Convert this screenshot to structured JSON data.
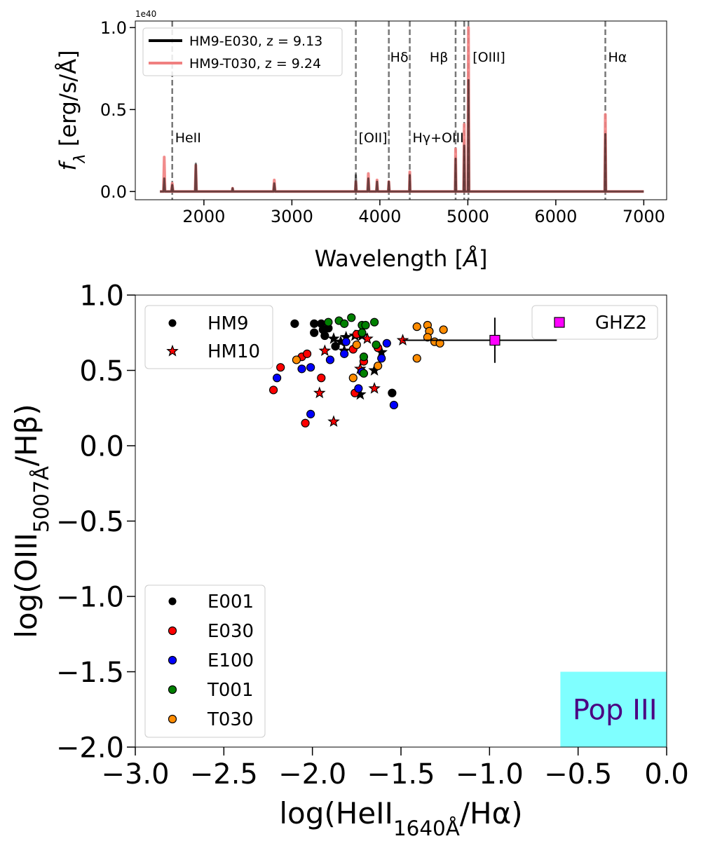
{
  "chart_data": [
    {
      "type": "line",
      "xlabel": {
        "main": "Wavelength [",
        "unit": "Å",
        "tail": "]"
      },
      "ylabel": {
        "main": "f",
        "sub": "λ",
        "tail": " [erg/s/Å]"
      },
      "offset_text": "1e40",
      "xlim": [
        1220,
        7260
      ],
      "xticks": [
        2000,
        3000,
        4000,
        5000,
        6000,
        7000
      ],
      "ylim": [
        -0.05,
        1.04
      ],
      "yticks": [
        {
          "value": 0,
          "label": "0.0"
        },
        0.5,
        {
          "value": 1,
          "label": "1.0"
        }
      ],
      "x": [
        1500,
        1540,
        1549,
        1558,
        1600,
        1630,
        1640,
        1650,
        1700,
        1880,
        1900,
        1908,
        1916,
        2000,
        2320,
        2326,
        2332,
        2400,
        2790,
        2800,
        2810,
        3000,
        3720,
        3727,
        3734,
        3860,
        3869,
        3878,
        3960,
        3968,
        3976,
        4095,
        4102,
        4109,
        4335,
        4340,
        4345,
        4855,
        4861,
        4867,
        4952,
        4959,
        4966,
        5000,
        5007,
        5014,
        5100,
        6556,
        6563,
        6570,
        7000
      ],
      "series": [
        {
          "name": "HM9-E030, z = 9.13",
          "color": "#000000",
          "values": [
            0,
            0,
            0.08,
            0,
            0,
            0,
            0.04,
            0,
            0,
            0,
            0,
            0.17,
            0,
            0,
            0,
            0.02,
            0,
            0,
            0,
            0.05,
            0,
            0,
            0,
            0.1,
            0,
            0,
            0.08,
            0,
            0,
            0.06,
            0,
            0,
            0.06,
            0,
            0,
            0.1,
            0,
            0,
            0.2,
            0,
            0,
            0.28,
            0,
            0,
            0.68,
            0,
            0,
            0,
            0.35,
            0,
            0
          ]
        },
        {
          "name": "HM9-T030, z = 9.24",
          "color": "#f08080",
          "values": [
            0,
            0,
            0.21,
            0,
            0,
            0,
            0.05,
            0,
            0,
            0,
            0,
            0.16,
            0,
            0,
            0,
            0.02,
            0,
            0,
            0,
            0.07,
            0,
            0,
            0,
            0.06,
            0,
            0,
            0.11,
            0,
            0,
            0.07,
            0,
            0,
            0.06,
            0,
            0,
            0.12,
            0,
            0,
            0.26,
            0,
            0,
            0.41,
            0,
            0,
            1.0,
            0,
            0,
            0,
            0.47,
            0,
            0
          ]
        }
      ],
      "lines": [
        {
          "x": 1640,
          "label": "HeII"
        },
        {
          "x": 3727,
          "label": "[OII]"
        },
        {
          "x": 4102,
          "label": "Hδ"
        },
        {
          "x": 4340,
          "label": "Hγ+OIII"
        },
        {
          "x": 4861,
          "label": "Hβ"
        },
        {
          "x": 4959,
          "label": null
        },
        {
          "x": 5007,
          "label": "[OIII]"
        },
        {
          "x": 6563,
          "label": "Hα"
        }
      ],
      "legend": "upper left"
    },
    {
      "type": "scatter",
      "xlabel": {
        "main": "log(HeII",
        "sub": "1640Å",
        "tail": "/Hα)"
      },
      "ylabel": {
        "main": "log(OIII",
        "sub": "5007Å",
        "tail": "/Hβ)"
      },
      "xlim": [
        -3,
        0
      ],
      "xticks": [
        {
          "value": -3,
          "label": "−3.0"
        },
        {
          "value": -2.5,
          "label": "−2.5"
        },
        {
          "value": -2,
          "label": "−2.0"
        },
        {
          "value": -1.5,
          "label": "−1.5"
        },
        {
          "value": -1,
          "label": "−1.0"
        },
        {
          "value": -0.5,
          "label": "−0.5"
        },
        {
          "value": 0,
          "label": "0.0"
        }
      ],
      "ylim": [
        -2,
        1
      ],
      "yticks": [
        {
          "value": 1,
          "label": "1.0"
        },
        0.5,
        {
          "value": 0,
          "label": "0.0"
        },
        {
          "value": -0.5,
          "label": "−0.5"
        },
        {
          "value": -1,
          "label": "−1.0"
        },
        {
          "value": -1.5,
          "label": "−1.5"
        },
        {
          "value": -2,
          "label": "−2.0"
        }
      ],
      "markers": [
        {
          "name": "HM9",
          "shape": "circle",
          "color": "#000000"
        },
        {
          "name": "HM10",
          "shape": "star",
          "color": "#ff0000"
        }
      ],
      "series": [
        {
          "name": "E001",
          "color": "#000000",
          "x": [
            -2.1,
            -1.99,
            -1.95,
            -1.99,
            -1.94,
            -1.93,
            -1.91,
            -1.87,
            -1.55,
            -1.88,
            -1.84,
            -1.81,
            -1.76,
            -1.72,
            -1.82,
            -1.65,
            -1.73,
            -1.61
          ],
          "y": [
            0.81,
            0.81,
            0.81,
            0.75,
            0.77,
            0.73,
            0.78,
            0.66,
            0.35,
            0.71,
            0.69,
            0.72,
            0.73,
            0.73,
            0.63,
            0.5,
            0.34,
            0.62
          ],
          "shape": [
            "circle",
            "circle",
            "circle",
            "circle",
            "circle",
            "circle",
            "circle",
            "circle",
            "circle",
            "star",
            "star",
            "star",
            "star",
            "star",
            "star",
            "star",
            "star",
            "star"
          ]
        },
        {
          "name": "E030",
          "color": "#ff0000",
          "x": [
            -2.22,
            -2.18,
            -2.06,
            -2.03,
            -2.04,
            -1.95,
            -1.77,
            -1.76,
            -1.71,
            -1.63,
            -1.75,
            -1.96,
            -1.93,
            -1.88,
            -1.69,
            -1.65,
            -1.49,
            -1.73
          ],
          "y": [
            0.37,
            0.52,
            0.59,
            0.61,
            0.15,
            0.45,
            0.64,
            0.35,
            0.56,
            0.65,
            0.74,
            0.35,
            0.63,
            0.16,
            0.71,
            0.38,
            0.7,
            0.51
          ],
          "shape": [
            "circle",
            "circle",
            "circle",
            "circle",
            "circle",
            "circle",
            "circle",
            "circle",
            "circle",
            "circle",
            "circle",
            "star",
            "star",
            "star",
            "star",
            "star",
            "star",
            "star"
          ]
        },
        {
          "name": "E100",
          "color": "#0000ff",
          "x": [
            -2.2,
            -2.06,
            -2.01,
            -2.01,
            -1.9,
            -1.82,
            -1.81,
            -1.74,
            -1.61,
            -1.58,
            -1.54,
            -1.72
          ],
          "y": [
            0.45,
            0.51,
            0.52,
            0.21,
            0.57,
            0.61,
            0.69,
            0.38,
            0.58,
            0.68,
            0.27,
            0.49
          ],
          "shape": [
            "circle",
            "circle",
            "circle",
            "circle",
            "circle",
            "circle",
            "circle",
            "circle",
            "circle",
            "circle",
            "circle",
            "circle"
          ]
        },
        {
          "name": "T001",
          "color": "#008000",
          "x": [
            -1.91,
            -1.85,
            -1.82,
            -1.78,
            -1.72,
            -1.7,
            -1.65,
            -1.64,
            -1.71,
            -1.71,
            -1.72
          ],
          "y": [
            0.82,
            0.83,
            0.81,
            0.85,
            0.8,
            0.8,
            0.82,
            0.67,
            0.59,
            0.48,
            0.75
          ],
          "shape": [
            "circle",
            "circle",
            "circle",
            "circle",
            "circle",
            "circle",
            "circle",
            "circle",
            "circle",
            "circle",
            "circle"
          ]
        },
        {
          "name": "T030",
          "color": "#ff8c00",
          "x": [
            -2.09,
            -1.77,
            -1.75,
            -1.63,
            -1.41,
            -1.41,
            -1.35,
            -1.34,
            -1.35,
            -1.31,
            -1.28,
            -1.26
          ],
          "y": [
            0.57,
            0.45,
            0.67,
            0.53,
            0.79,
            0.58,
            0.8,
            0.76,
            0.72,
            0.69,
            0.68,
            0.77
          ],
          "shape": [
            "circle",
            "circle",
            "circle",
            "circle",
            "circle",
            "circle",
            "circle",
            "circle",
            "circle",
            "circle",
            "circle",
            "circle"
          ]
        }
      ],
      "reference": {
        "name": "GHZ2",
        "color": "#ff00ff",
        "x": -0.97,
        "y": 0.7,
        "xerr": [
          0.52,
          0.35
        ],
        "yerr": 0.15
      },
      "region": {
        "label": "Pop III",
        "x": [
          -0.6,
          0
        ],
        "y": [
          -2,
          -1.5
        ],
        "color": "#7fffff",
        "label_color": "#4b0082"
      },
      "legend": "lower left"
    }
  ]
}
